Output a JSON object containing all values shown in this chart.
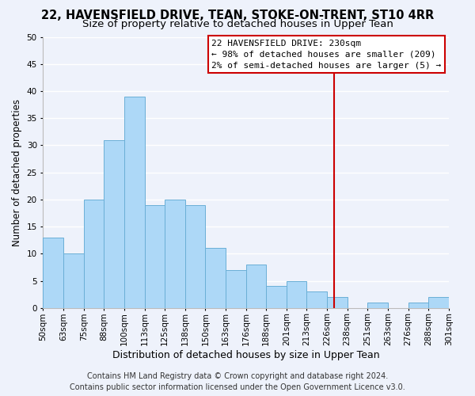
{
  "title": "22, HAVENSFIELD DRIVE, TEAN, STOKE-ON-TRENT, ST10 4RR",
  "subtitle": "Size of property relative to detached houses in Upper Tean",
  "xlabel": "Distribution of detached houses by size in Upper Tean",
  "ylabel": "Number of detached properties",
  "bin_labels": [
    "50sqm",
    "63sqm",
    "75sqm",
    "88sqm",
    "100sqm",
    "113sqm",
    "125sqm",
    "138sqm",
    "150sqm",
    "163sqm",
    "176sqm",
    "188sqm",
    "201sqm",
    "213sqm",
    "226sqm",
    "238sqm",
    "251sqm",
    "263sqm",
    "276sqm",
    "288sqm",
    "301sqm"
  ],
  "bar_heights": [
    13,
    10,
    20,
    31,
    39,
    19,
    20,
    19,
    11,
    7,
    8,
    4,
    5,
    3,
    2,
    0,
    1,
    0,
    1,
    2
  ],
  "bar_color": "#add8f7",
  "bar_edge_color": "#6aafd6",
  "ylim": [
    0,
    50
  ],
  "yticks": [
    0,
    5,
    10,
    15,
    20,
    25,
    30,
    35,
    40,
    45,
    50
  ],
  "vline_color": "#cc0000",
  "annotation_title": "22 HAVENSFIELD DRIVE: 230sqm",
  "annotation_line1": "← 98% of detached houses are smaller (209)",
  "annotation_line2": "2% of semi-detached houses are larger (5) →",
  "annotation_box_color": "#ffffff",
  "annotation_border_color": "#cc0000",
  "footer1": "Contains HM Land Registry data © Crown copyright and database right 2024.",
  "footer2": "Contains public sector information licensed under the Open Government Licence v3.0.",
  "background_color": "#eef2fb",
  "grid_color": "#ffffff",
  "title_fontsize": 10.5,
  "subtitle_fontsize": 9.5,
  "xlabel_fontsize": 9,
  "ylabel_fontsize": 8.5,
  "tick_fontsize": 7.5,
  "annotation_fontsize": 8,
  "footer_fontsize": 7
}
